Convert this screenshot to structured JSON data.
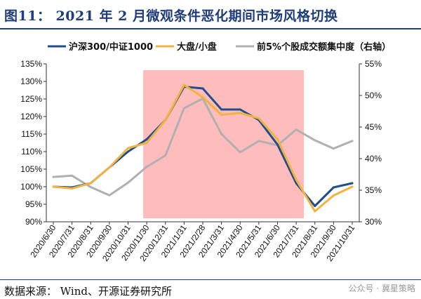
{
  "header": {
    "title": "图11： 2021 年 2 月微观条件恶化期间市场风格切换"
  },
  "footer": {
    "source": "数据来源： Wind、开源证券研究所",
    "watermark": "公众号 · 冀星策略"
  },
  "chart_data": {
    "type": "line",
    "categories": [
      "2020/6/30",
      "2020/7/31",
      "2020/8/31",
      "2020/9/30",
      "2020/10/31",
      "2020/11/30",
      "2020/12/31",
      "2021/1/31",
      "2021/2/28",
      "2021/3/31",
      "2021/4/30",
      "2021/5/31",
      "2021/6/30",
      "2021/7/31",
      "2021/8/31",
      "2021/9/30",
      "2021/10/31"
    ],
    "y_left": {
      "min": 90,
      "max": 135,
      "step": 5,
      "ticks": [
        "90%",
        "95%",
        "100%",
        "105%",
        "110%",
        "115%",
        "120%",
        "125%",
        "130%",
        "135%"
      ]
    },
    "y_right": {
      "min": 30,
      "max": 55,
      "step": 5,
      "ticks": [
        "30%",
        "35%",
        "40%",
        "45%",
        "50%",
        "55%"
      ]
    },
    "shaded_region": {
      "from": "2020/11/30",
      "to": "2021/7/31",
      "color": "#ffbcbc"
    },
    "legend_position": "top",
    "series": [
      {
        "name": "沪深300/中证1000",
        "axis": "left",
        "color": "#1f4e8c",
        "values": [
          100.0,
          99.8,
          101.0,
          105.5,
          110.0,
          113.5,
          119.0,
          128.5,
          128.0,
          122.0,
          122.0,
          119.0,
          112.0,
          101.0,
          94.5,
          99.8,
          101.0
        ]
      },
      {
        "name": "大盘/小盘",
        "axis": "left",
        "color": "#f0b341",
        "values": [
          100.0,
          99.5,
          101.0,
          105.5,
          111.0,
          112.5,
          119.0,
          129.0,
          125.5,
          120.5,
          121.0,
          119.5,
          113.5,
          102.0,
          93.0,
          97.5,
          100.0
        ]
      },
      {
        "name": "前5%个股成交额集中度（右轴）",
        "axis": "right",
        "color": "#b0b0b0",
        "values": [
          37.1,
          37.3,
          35.5,
          34.2,
          36.2,
          38.7,
          40.5,
          48.0,
          49.5,
          43.9,
          41.0,
          42.8,
          42.1,
          44.6,
          42.9,
          41.6,
          42.8
        ]
      }
    ]
  }
}
